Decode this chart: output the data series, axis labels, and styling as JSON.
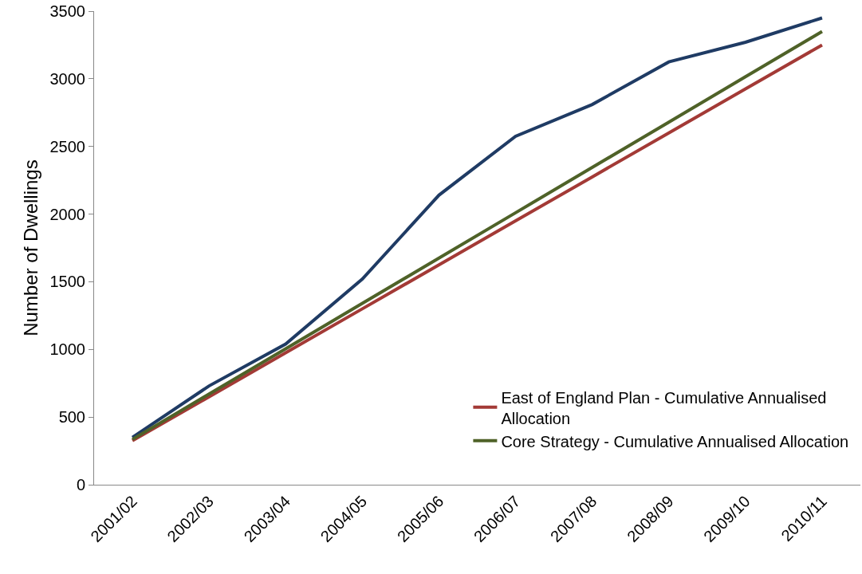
{
  "chart_data": {
    "type": "line",
    "ylabel": "Number of Dwellings",
    "categories": [
      "2001/02",
      "2002/03",
      "2003/04",
      "2004/05",
      "2005/06",
      "2006/07",
      "2007/08",
      "2008/09",
      "2009/10",
      "2010/11"
    ],
    "series": [
      {
        "color": "#1f3b64",
        "values": [
          350,
          730,
          1040,
          1520,
          2140,
          2575,
          2810,
          3125,
          3270,
          3450
        ]
      },
      {
        "name": "East of England Plan - Cumulative Annualised Allocation",
        "color": "#a33a36",
        "values": [
          325,
          650,
          975,
          1300,
          1625,
          1950,
          2275,
          2600,
          2925,
          3250
        ]
      },
      {
        "name": "Core Strategy - Cumulative Annualised Allocation",
        "color": "#4f6228",
        "values": [
          335,
          670,
          1005,
          1340,
          1675,
          2010,
          2345,
          2680,
          3015,
          3350
        ]
      }
    ],
    "ylim": [
      0,
      3500
    ],
    "yticks": [
      0,
      500,
      1000,
      1500,
      2000,
      2500,
      3000,
      3500
    ],
    "legend": "bottom right",
    "marker": "none",
    "line_style": "solid"
  }
}
